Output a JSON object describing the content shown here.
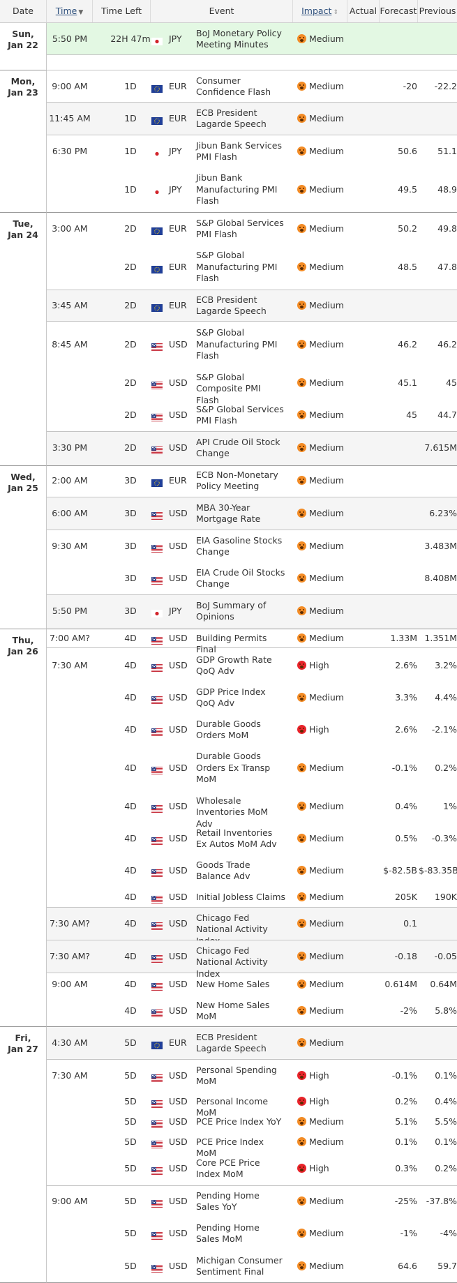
{
  "header": {
    "date": "Date",
    "time": "Time",
    "time_left": "Time Left",
    "event": "Event",
    "impact": "Impact",
    "actual": "Actual",
    "forecast": "Forecast",
    "previous": "Previous"
  },
  "days": [
    {
      "day": "Sun,",
      "date": "Jan 22"
    },
    {
      "day": "Mon,",
      "date": "Jan 23"
    },
    {
      "day": "Tue,",
      "date": "Jan 24"
    },
    {
      "day": "Wed,",
      "date": "Jan 25"
    },
    {
      "day": "Thu,",
      "date": "Jan 26"
    },
    {
      "day": "Fri,",
      "date": "Jan 27"
    }
  ],
  "groups": [
    {
      "time": "5:50 PM",
      "rows": [
        {
          "time_left": "22H 47m",
          "flag": "jp",
          "currency": "JPY",
          "event": "BoJ Monetary Policy Meeting Minutes",
          "impact": "Medium",
          "level": "med",
          "forecast": "",
          "previous": ""
        }
      ]
    },
    {
      "time": "",
      "rows": []
    },
    {
      "time": "9:00 AM",
      "rows": [
        {
          "time_left": "1D",
          "flag": "eu",
          "currency": "EUR",
          "event": "Consumer Confidence Flash",
          "impact": "Medium",
          "level": "med",
          "forecast": "-20",
          "previous": "-22.2"
        }
      ]
    },
    {
      "time": "11:45 AM",
      "rows": [
        {
          "time_left": "1D",
          "flag": "eu",
          "currency": "EUR",
          "event": "ECB President Lagarde Speech",
          "impact": "Medium",
          "level": "med",
          "forecast": "",
          "previous": ""
        }
      ]
    },
    {
      "time": "6:30 PM",
      "rows": [
        {
          "time_left": "1D",
          "flag": "jp",
          "currency": "JPY",
          "event": "Jibun Bank Services PMI Flash",
          "impact": "Medium",
          "level": "med",
          "forecast": "50.6",
          "previous": "51.1"
        },
        {
          "time_left": "1D",
          "flag": "jp",
          "currency": "JPY",
          "event": "Jibun Bank Manufacturing PMI Flash",
          "impact": "Medium",
          "level": "med",
          "forecast": "49.5",
          "previous": "48.9"
        }
      ]
    },
    {
      "time": "3:00 AM",
      "rows": [
        {
          "time_left": "2D",
          "flag": "eu",
          "currency": "EUR",
          "event": "S&P Global Services PMI Flash",
          "impact": "Medium",
          "level": "med",
          "forecast": "50.2",
          "previous": "49.8"
        },
        {
          "time_left": "2D",
          "flag": "eu",
          "currency": "EUR",
          "event": "S&P Global Manufacturing PMI Flash",
          "impact": "Medium",
          "level": "med",
          "forecast": "48.5",
          "previous": "47.8"
        }
      ]
    },
    {
      "time": "3:45 AM",
      "rows": [
        {
          "time_left": "2D",
          "flag": "eu",
          "currency": "EUR",
          "event": "ECB President Lagarde Speech",
          "impact": "Medium",
          "level": "med",
          "forecast": "",
          "previous": ""
        }
      ]
    },
    {
      "time": "8:45 AM",
      "rows": [
        {
          "time_left": "2D",
          "flag": "us",
          "currency": "USD",
          "event": "S&P Global Manufacturing PMI Flash",
          "impact": "Medium",
          "level": "med",
          "forecast": "46.2",
          "previous": "46.2"
        },
        {
          "time_left": "2D",
          "flag": "us",
          "currency": "USD",
          "event": "S&P Global Composite PMI Flash",
          "impact": "Medium",
          "level": "med",
          "forecast": "45.1",
          "previous": "45"
        },
        {
          "time_left": "2D",
          "flag": "us",
          "currency": "USD",
          "event": "S&P Global Services PMI Flash",
          "impact": "Medium",
          "level": "med",
          "forecast": "45",
          "previous": "44.7"
        }
      ]
    },
    {
      "time": "3:30 PM",
      "rows": [
        {
          "time_left": "2D",
          "flag": "us",
          "currency": "USD",
          "event": "API Crude Oil Stock Change",
          "impact": "Medium",
          "level": "med",
          "forecast": "",
          "previous": "7.615M"
        }
      ]
    },
    {
      "time": "2:00 AM",
      "rows": [
        {
          "time_left": "3D",
          "flag": "eu",
          "currency": "EUR",
          "event": "ECB Non-Monetary Policy Meeting",
          "impact": "Medium",
          "level": "med",
          "forecast": "",
          "previous": ""
        }
      ]
    },
    {
      "time": "6:00 AM",
      "rows": [
        {
          "time_left": "3D",
          "flag": "us",
          "currency": "USD",
          "event": "MBA 30-Year Mortgage Rate",
          "impact": "Medium",
          "level": "med",
          "forecast": "",
          "previous": "6.23%"
        }
      ]
    },
    {
      "time": "9:30 AM",
      "rows": [
        {
          "time_left": "3D",
          "flag": "us",
          "currency": "USD",
          "event": "EIA Gasoline Stocks Change",
          "impact": "Medium",
          "level": "med",
          "forecast": "",
          "previous": "3.483M"
        },
        {
          "time_left": "3D",
          "flag": "us",
          "currency": "USD",
          "event": "EIA Crude Oil Stocks Change",
          "impact": "Medium",
          "level": "med",
          "forecast": "",
          "previous": "8.408M"
        }
      ]
    },
    {
      "time": "5:50 PM",
      "rows": [
        {
          "time_left": "3D",
          "flag": "jp",
          "currency": "JPY",
          "event": "BoJ Summary of Opinions",
          "impact": "Medium",
          "level": "med",
          "forecast": "",
          "previous": ""
        }
      ]
    },
    {
      "time": "7:00 AM?",
      "rows": [
        {
          "time_left": "4D",
          "flag": "us",
          "currency": "USD",
          "event": "Building Permits Final",
          "impact": "Medium",
          "level": "med",
          "forecast": "1.33M",
          "previous": "1.351M"
        }
      ]
    },
    {
      "time": "7:30 AM",
      "rows": [
        {
          "time_left": "4D",
          "flag": "us",
          "currency": "USD",
          "event": "GDP Growth Rate QoQ Adv",
          "impact": "High",
          "level": "high",
          "forecast": "2.6%",
          "previous": "3.2%"
        },
        {
          "time_left": "4D",
          "flag": "us",
          "currency": "USD",
          "event": "GDP Price Index QoQ Adv",
          "impact": "Medium",
          "level": "med",
          "forecast": "3.3%",
          "previous": "4.4%"
        },
        {
          "time_left": "4D",
          "flag": "us",
          "currency": "USD",
          "event": "Durable Goods Orders MoM",
          "impact": "High",
          "level": "high",
          "forecast": "2.6%",
          "previous": "-2.1%"
        },
        {
          "time_left": "4D",
          "flag": "us",
          "currency": "USD",
          "event": "Durable Goods Orders Ex Transp MoM",
          "impact": "Medium",
          "level": "med",
          "forecast": "-0.1%",
          "previous": "0.2%"
        },
        {
          "time_left": "4D",
          "flag": "us",
          "currency": "USD",
          "event": "Wholesale Inventories MoM Adv",
          "impact": "Medium",
          "level": "med",
          "forecast": "0.4%",
          "previous": "1%"
        },
        {
          "time_left": "4D",
          "flag": "us",
          "currency": "USD",
          "event": "Retail Inventories Ex Autos MoM Adv",
          "impact": "Medium",
          "level": "med",
          "forecast": "0.5%",
          "previous": "-0.3%"
        },
        {
          "time_left": "4D",
          "flag": "us",
          "currency": "USD",
          "event": "Goods Trade Balance Adv",
          "impact": "Medium",
          "level": "med",
          "forecast": "$-82.5B",
          "previous": "$-83.35B"
        },
        {
          "time_left": "4D",
          "flag": "us",
          "currency": "USD",
          "event": "Initial Jobless Claims",
          "impact": "Medium",
          "level": "med",
          "forecast": "205K",
          "previous": "190K"
        }
      ]
    },
    {
      "time": "7:30 AM?",
      "rows": [
        {
          "time_left": "4D",
          "flag": "us",
          "currency": "USD",
          "event": "Chicago Fed National Activity Index",
          "impact": "Medium",
          "level": "med",
          "forecast": "0.1",
          "previous": ""
        }
      ]
    },
    {
      "time": "7:30 AM?",
      "rows": [
        {
          "time_left": "4D",
          "flag": "us",
          "currency": "USD",
          "event": "Chicago Fed National Activity Index",
          "impact": "Medium",
          "level": "med",
          "forecast": "-0.18",
          "previous": "-0.05"
        }
      ]
    },
    {
      "time": "9:00 AM",
      "rows": [
        {
          "time_left": "4D",
          "flag": "us",
          "currency": "USD",
          "event": "New Home Sales",
          "impact": "Medium",
          "level": "med",
          "forecast": "0.614M",
          "previous": "0.64M"
        },
        {
          "time_left": "4D",
          "flag": "us",
          "currency": "USD",
          "event": "New Home Sales MoM",
          "impact": "Medium",
          "level": "med",
          "forecast": "-2%",
          "previous": "5.8%"
        }
      ]
    },
    {
      "time": "4:30 AM",
      "rows": [
        {
          "time_left": "5D",
          "flag": "eu",
          "currency": "EUR",
          "event": "ECB President Lagarde Speech",
          "impact": "Medium",
          "level": "med",
          "forecast": "",
          "previous": ""
        }
      ]
    },
    {
      "time": "7:30 AM",
      "rows": [
        {
          "time_left": "5D",
          "flag": "us",
          "currency": "USD",
          "event": "Personal Spending MoM",
          "impact": "High",
          "level": "high",
          "forecast": "-0.1%",
          "previous": "0.1%"
        },
        {
          "time_left": "5D",
          "flag": "us",
          "currency": "USD",
          "event": "Personal Income MoM",
          "impact": "High",
          "level": "high",
          "forecast": "0.2%",
          "previous": "0.4%"
        },
        {
          "time_left": "5D",
          "flag": "us",
          "currency": "USD",
          "event": "PCE Price Index YoY",
          "impact": "Medium",
          "level": "med",
          "forecast": "5.1%",
          "previous": "5.5%"
        },
        {
          "time_left": "5D",
          "flag": "us",
          "currency": "USD",
          "event": "PCE Price Index MoM",
          "impact": "Medium",
          "level": "med",
          "forecast": "0.1%",
          "previous": "0.1%"
        },
        {
          "time_left": "5D",
          "flag": "us",
          "currency": "USD",
          "event": "Core PCE Price Index MoM",
          "impact": "High",
          "level": "high",
          "forecast": "0.3%",
          "previous": "0.2%"
        }
      ]
    },
    {
      "time": "9:00 AM",
      "rows": [
        {
          "time_left": "5D",
          "flag": "us",
          "currency": "USD",
          "event": "Pending Home Sales YoY",
          "impact": "Medium",
          "level": "med",
          "forecast": "-25%",
          "previous": "-37.8%"
        },
        {
          "time_left": "5D",
          "flag": "us",
          "currency": "USD",
          "event": "Pending Home Sales MoM",
          "impact": "Medium",
          "level": "med",
          "forecast": "-1%",
          "previous": "-4%"
        },
        {
          "time_left": "5D",
          "flag": "us",
          "currency": "USD",
          "event": "Michigan Consumer Sentiment Final",
          "impact": "Medium",
          "level": "med",
          "forecast": "64.6",
          "previous": "59.7"
        }
      ]
    }
  ]
}
